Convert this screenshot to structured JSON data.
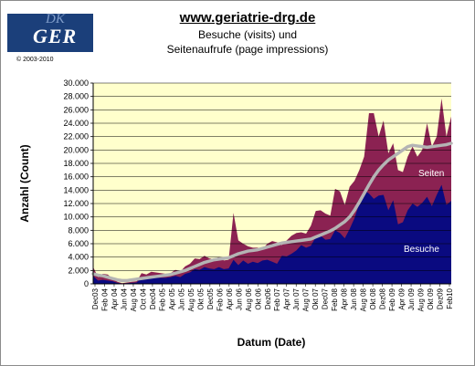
{
  "logo": {
    "text": "GER",
    "mark": "DK"
  },
  "copyright": "© 2003-2010",
  "chart_data": {
    "type": "area",
    "title": "www.geriatrie-drg.de",
    "subtitle_lines": [
      "Besuche (visits) und",
      "Seitenaufrufe (page impressions)"
    ],
    "xlabel": "Datum (Date)",
    "ylabel": "Anzahl (Count)",
    "ylim": [
      0,
      30000
    ],
    "yticks": [
      "0",
      "2.000",
      "4.000",
      "6.000",
      "8.000",
      "10.000",
      "12.000",
      "14.000",
      "16.000",
      "18.000",
      "20.000",
      "22.000",
      "24.000",
      "26.000",
      "28.000",
      "30.000"
    ],
    "xticks": [
      "Dec03",
      "Feb 04",
      "Apr 04",
      "Jun 04",
      "Aug 04",
      "Oct 04",
      "Dec04",
      "Feb 05",
      "Apr 05",
      "Jun 05",
      "Aug 05",
      "Okt 05",
      "Dec05",
      "Feb 06",
      "Apr 06",
      "Jun 06",
      "Aug 06",
      "Okt 06",
      "Dez06",
      "Feb 07",
      "Apr 07",
      "Jun 07",
      "Aug 07",
      "Okt 07",
      "Dec07",
      "Feb 08",
      "Apr 08",
      "Jun 08",
      "Aug 08",
      "Okt 08",
      "Dez08",
      "Feb 09",
      "Apr 09",
      "Jun 09",
      "Aug 09",
      "Okt 09",
      "Dez09",
      "Feb10"
    ],
    "grid": true,
    "series_labels": {
      "seiten": "Seiten",
      "besuche": "Besuche"
    },
    "colors": {
      "plot_bg": "#ffffcc",
      "seiten": "#8b2252",
      "besuche": "#0a0a80",
      "trend": "#b4b4b4",
      "grid": "#000000"
    },
    "seiten": [
      2500,
      1000,
      1500,
      1400,
      800,
      300,
      100,
      200,
      300,
      400,
      1600,
      1400,
      1800,
      1700,
      1600,
      1500,
      1600,
      2100,
      1800,
      2600,
      3000,
      3800,
      3700,
      4200,
      3800,
      3700,
      4000,
      3500,
      3600,
      10600,
      6500,
      6000,
      5600,
      5400,
      5400,
      5200,
      6000,
      6400,
      6200,
      5800,
      6500,
      7200,
      7600,
      7700,
      7500,
      8700,
      10900,
      11000,
      10500,
      10200,
      14200,
      13800,
      11800,
      14500,
      15400,
      17000,
      19000,
      25500,
      25500,
      22000,
      24400,
      19500,
      21000,
      17000,
      16700,
      19000,
      20500,
      19000,
      20000,
      24000,
      20500,
      22000,
      27700,
      22000,
      25000
    ],
    "besuche": [
      1200,
      500,
      600,
      500,
      400,
      150,
      50,
      100,
      150,
      200,
      1000,
      800,
      900,
      900,
      900,
      900,
      1000,
      1200,
      1000,
      1500,
      1700,
      2200,
      2100,
      2500,
      2300,
      2200,
      2500,
      2200,
      2300,
      3600,
      2800,
      3500,
      3000,
      3300,
      3100,
      3500,
      3600,
      3300,
      3000,
      4200,
      4100,
      4500,
      5000,
      5800,
      5400,
      5700,
      7000,
      7200,
      6600,
      6700,
      8000,
      7600,
      6800,
      8200,
      9800,
      12000,
      14000,
      13500,
      12700,
      13200,
      13300,
      11000,
      12500,
      8900,
      9200,
      11000,
      12000,
      11500,
      12100,
      13000,
      11600,
      13300,
      14800,
      11800,
      12400
    ],
    "trend": [
      1500,
      1300,
      1200,
      1000,
      800,
      600,
      500,
      500,
      600,
      700,
      800,
      900,
      1000,
      1100,
      1200,
      1300,
      1400,
      1600,
      1800,
      2000,
      2300,
      2600,
      2900,
      3200,
      3400,
      3600,
      3700,
      3800,
      3900,
      4200,
      4500,
      4700,
      4900,
      5000,
      5100,
      5300,
      5500,
      5700,
      5900,
      6100,
      6200,
      6300,
      6400,
      6500,
      6600,
      6700,
      7000,
      7300,
      7600,
      7900,
      8300,
      8800,
      9300,
      10000,
      11000,
      12200,
      13500,
      14800,
      16000,
      17000,
      17800,
      18500,
      19000,
      19500,
      20000,
      20500,
      20700,
      20600,
      20500,
      20400,
      20500,
      20600,
      20700,
      20800,
      21000
    ]
  }
}
